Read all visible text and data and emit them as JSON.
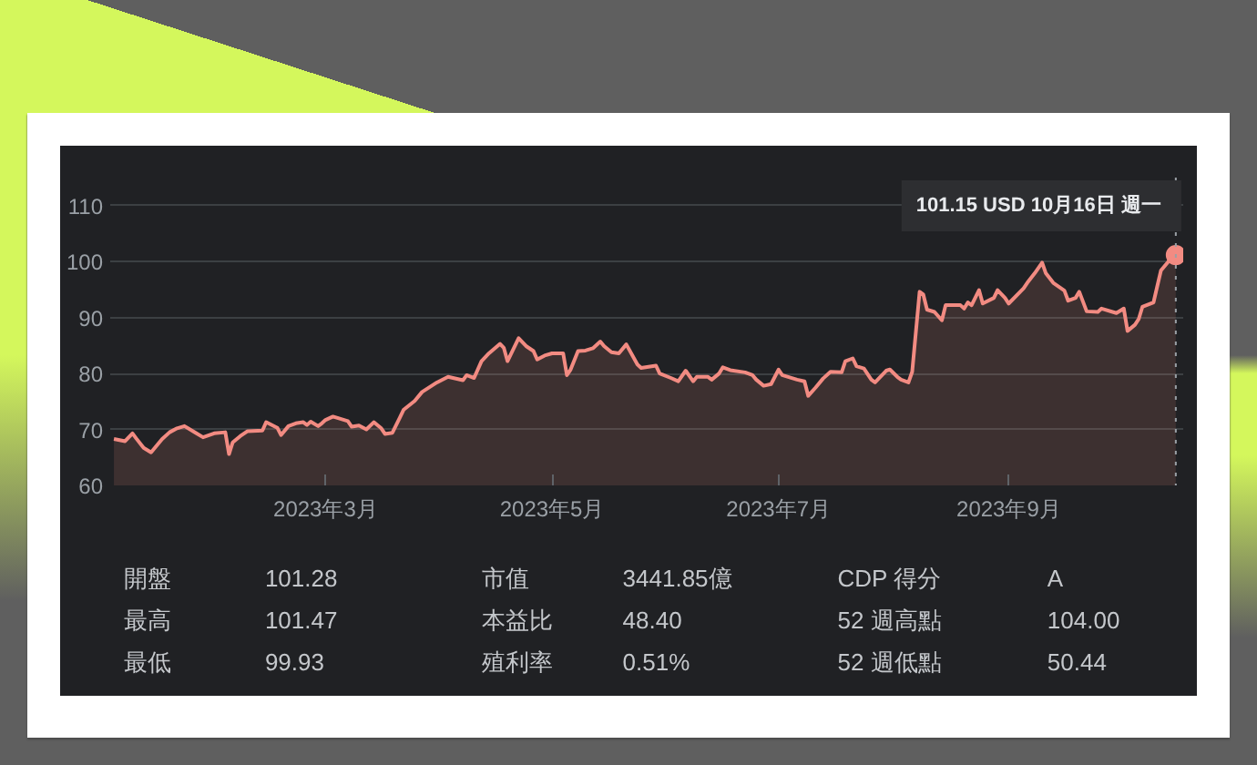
{
  "chart_data": {
    "type": "area",
    "x": [
      "2023-01-03",
      "2023-01-06",
      "2023-01-08",
      "2023-01-09",
      "2023-01-11",
      "2023-01-13",
      "2023-01-16",
      "2023-01-18",
      "2023-01-20",
      "2023-01-22",
      "2023-01-25",
      "2023-01-27",
      "2023-01-30",
      "2023-02-02",
      "2023-02-03",
      "2023-02-04",
      "2023-02-06",
      "2023-02-08",
      "2023-02-12",
      "2023-02-13",
      "2023-02-16",
      "2023-02-17",
      "2023-02-19",
      "2023-02-21",
      "2023-02-23",
      "2023-02-24",
      "2023-02-25",
      "2023-02-27",
      "2023-02-28",
      "2023-03-01",
      "2023-03-03",
      "2023-03-07",
      "2023-03-08",
      "2023-03-10",
      "2023-03-12",
      "2023-03-14",
      "2023-03-16",
      "2023-03-17",
      "2023-03-19",
      "2023-03-21",
      "2023-03-22",
      "2023-03-25",
      "2023-03-27",
      "2023-03-31",
      "2023-04-03",
      "2023-04-07",
      "2023-04-08",
      "2023-04-10",
      "2023-04-12",
      "2023-04-14",
      "2023-04-17",
      "2023-04-18",
      "2023-04-19",
      "2023-04-22",
      "2023-04-24",
      "2023-04-26",
      "2023-04-27",
      "2023-04-29",
      "2023-05-01",
      "2023-05-04",
      "2023-05-05",
      "2023-05-06",
      "2023-05-08",
      "2023-05-10",
      "2023-05-12",
      "2023-05-14",
      "2023-05-15",
      "2023-05-17",
      "2023-05-19",
      "2023-05-21",
      "2023-05-24",
      "2023-05-25",
      "2023-05-29",
      "2023-05-30",
      "2023-06-02",
      "2023-06-04",
      "2023-06-06",
      "2023-06-08",
      "2023-06-09",
      "2023-06-12",
      "2023-06-13",
      "2023-06-15",
      "2023-06-16",
      "2023-06-18",
      "2023-06-22",
      "2023-06-24",
      "2023-06-25",
      "2023-06-27",
      "2023-06-29",
      "2023-07-01",
      "2023-07-02",
      "2023-07-06",
      "2023-07-08",
      "2023-07-09",
      "2023-07-11",
      "2023-07-13",
      "2023-07-15",
      "2023-07-18",
      "2023-07-19",
      "2023-07-21",
      "2023-07-22",
      "2023-07-24",
      "2023-07-26",
      "2023-07-27",
      "2023-07-30",
      "2023-07-31",
      "2023-08-02",
      "2023-08-03",
      "2023-08-05",
      "2023-08-06",
      "2023-08-08",
      "2023-08-09",
      "2023-08-10",
      "2023-08-12",
      "2023-08-14",
      "2023-08-15",
      "2023-08-19",
      "2023-08-20",
      "2023-08-21",
      "2023-08-22",
      "2023-08-24",
      "2023-08-25",
      "2023-08-28",
      "2023-08-29",
      "2023-08-31",
      "2023-09-01",
      "2023-09-05",
      "2023-09-06",
      "2023-09-08",
      "2023-09-10",
      "2023-09-11",
      "2023-09-13",
      "2023-09-16",
      "2023-09-17",
      "2023-09-19",
      "2023-09-20",
      "2023-09-22",
      "2023-09-25",
      "2023-09-26",
      "2023-09-30",
      "2023-10-02",
      "2023-10-03",
      "2023-10-05",
      "2023-10-06",
      "2023-10-07",
      "2023-10-10",
      "2023-10-12",
      "2023-10-14",
      "2023-10-15",
      "2023-10-16"
    ],
    "series": [
      {
        "color": "#f28b82",
        "values": [
          68.3,
          67.9,
          69.3,
          68.4,
          66.7,
          65.9,
          68.3,
          69.5,
          70.2,
          70.6,
          69.4,
          68.6,
          69.3,
          69.5,
          65.6,
          67.7,
          68.8,
          69.7,
          69.8,
          71.3,
          70.3,
          69.0,
          70.6,
          71.1,
          71.3,
          70.8,
          71.4,
          70.6,
          71.1,
          71.7,
          72.3,
          71.5,
          70.5,
          70.7,
          70.0,
          71.3,
          70.2,
          69.2,
          69.4,
          72.1,
          73.5,
          75.1,
          76.7,
          78.4,
          79.4,
          78.8,
          79.7,
          79.2,
          82.2,
          83.6,
          85.3,
          84.6,
          82.2,
          86.3,
          84.9,
          84.0,
          82.5,
          83.2,
          83.6,
          83.6,
          79.7,
          80.7,
          84.0,
          84.1,
          84.5,
          85.7,
          84.9,
          83.8,
          83.6,
          85.2,
          81.6,
          81.0,
          81.4,
          80.0,
          79.2,
          78.6,
          80.5,
          78.6,
          79.4,
          79.4,
          78.9,
          80.0,
          81.1,
          80.6,
          80.2,
          79.7,
          78.9,
          77.8,
          78.1,
          80.7,
          79.7,
          78.9,
          78.6,
          76.0,
          77.5,
          79.1,
          80.3,
          80.2,
          82.2,
          82.7,
          81.3,
          80.9,
          78.9,
          78.4,
          80.5,
          80.7,
          79.4,
          78.9,
          78.4,
          80.3,
          94.6,
          94.1,
          91.4,
          91.0,
          89.5,
          92.2,
          92.2,
          91.6,
          92.7,
          92.2,
          94.9,
          92.5,
          93.5,
          94.9,
          93.5,
          92.5,
          95.2,
          96.2,
          97.9,
          99.8,
          97.9,
          96.2,
          94.8,
          93.0,
          93.5,
          94.6,
          91.1,
          91.0,
          91.6,
          90.8,
          91.6,
          87.6,
          88.7,
          89.7,
          91.9,
          92.7,
          98.4,
          100.0,
          101.3,
          101.15
        ]
      },
      {
        "type": "scatter",
        "color": "#f28b82",
        "marker": "circle",
        "x": [
          "2023-10-16"
        ],
        "values": [
          101.15
        ]
      }
    ],
    "xlim": [
      "2023-01-02",
      "2023-10-18"
    ],
    "xticks": [
      {
        "value": "2023-03-01",
        "label": "2023年3月"
      },
      {
        "value": "2023-05-01",
        "label": "2023年5月"
      },
      {
        "value": "2023-07-01",
        "label": "2023年7月"
      },
      {
        "value": "2023-09-01",
        "label": "2023年9月"
      }
    ],
    "ylim": [
      60,
      115
    ],
    "yticks": [
      60,
      70,
      80,
      90,
      100,
      110
    ],
    "grid": "y",
    "ref_lines": [
      {
        "axis": "x",
        "value": "2023-10-16",
        "color": "#9aa0a6",
        "line_style": "dotted"
      }
    ],
    "annotations": [
      {
        "text": "101.15 USD  10月16日 週一",
        "x": "2023-10-16",
        "y": 101.15
      },
      "開盤",
      "101.28",
      "市值",
      "3441.85億",
      "CDP 得分",
      "A",
      "最高",
      "101.47",
      "本益比",
      "48.40",
      "52 週高點",
      "104.00",
      "最低",
      "99.93",
      "殖利率",
      "0.51%",
      "52 週低點",
      "50.44"
    ]
  }
}
